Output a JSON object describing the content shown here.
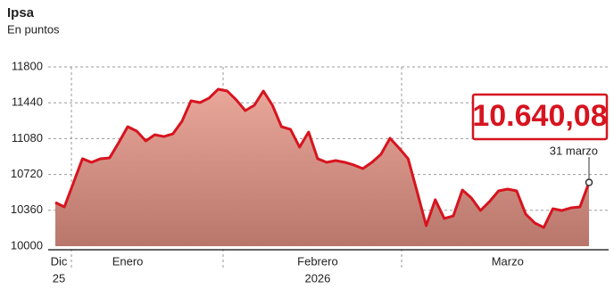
{
  "chart_data": {
    "type": "area",
    "title": "Ipsa",
    "subtitle": "En puntos",
    "categories": [
      "Dic",
      null,
      null,
      null,
      null,
      null,
      null,
      null,
      "Enero",
      null,
      null,
      null,
      null,
      null,
      null,
      null,
      null,
      null,
      null,
      null,
      null,
      null,
      null,
      null,
      null,
      null,
      null,
      null,
      null,
      "Febrero",
      null,
      null,
      null,
      null,
      null,
      null,
      null,
      null,
      null,
      null,
      null,
      null,
      null,
      null,
      null,
      null,
      null,
      null,
      null,
      null,
      "Marzo",
      null,
      null,
      null,
      null,
      null,
      null,
      null,
      null,
      null
    ],
    "years": [
      "25",
      "2026"
    ],
    "values": [
      10439,
      10394,
      10636,
      10878,
      10842,
      10878,
      10887,
      11039,
      11200,
      11155,
      11057,
      11119,
      11101,
      11128,
      11254,
      11460,
      11442,
      11487,
      11576,
      11558,
      11469,
      11361,
      11415,
      11558,
      11415,
      11200,
      11173,
      10994,
      11146,
      10878,
      10842,
      10860,
      10842,
      10815,
      10779,
      10842,
      10922,
      11084,
      10985,
      10878,
      10546,
      10206,
      10466,
      10278,
      10304,
      10564,
      10484,
      10358,
      10448,
      10555,
      10573,
      10555,
      10322,
      10233,
      10188,
      10376,
      10358,
      10385,
      10394,
      10640.08
    ],
    "color": "#d7141f",
    "ylim": [
      10000,
      11800
    ],
    "yticks": [
      10000,
      10360,
      10720,
      11080,
      11440,
      11800
    ],
    "grid": true,
    "annotation": {
      "label": "10.640,08",
      "date": "31 marzo"
    }
  }
}
